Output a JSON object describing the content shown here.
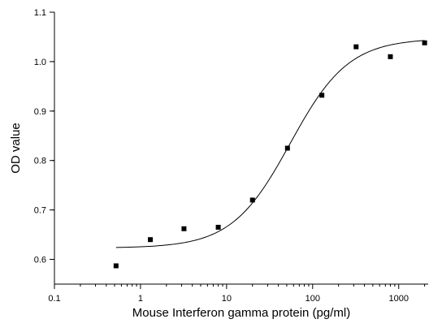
{
  "chart_data": {
    "type": "scatter",
    "title": "",
    "xlabel": "Mouse Interferon gamma protein (pg/ml)",
    "ylabel": "OD value",
    "x_scale": "log",
    "xlim": [
      0.1,
      2200
    ],
    "ylim": [
      0.55,
      1.1
    ],
    "x_ticks": [
      0.1,
      1,
      10,
      100,
      1000
    ],
    "x_tick_labels": [
      "0.1",
      "1",
      "10",
      "100",
      "1000"
    ],
    "y_ticks": [
      0.6,
      0.7,
      0.8,
      0.9,
      1.0,
      1.1
    ],
    "y_tick_labels": [
      "0.6",
      "0.7",
      "0.8",
      "0.9",
      "1.0",
      "1.1"
    ],
    "grid": false,
    "legend": "none",
    "marker": "square",
    "marker_color": "#000000",
    "line_color": "#000000",
    "series": [
      {
        "x": [
          0.52,
          1.3,
          3.2,
          8.0,
          20,
          51,
          128,
          320,
          800,
          2000
        ],
        "y": [
          0.587,
          0.64,
          0.662,
          0.665,
          0.72,
          0.825,
          0.932,
          1.03,
          1.01,
          1.038
        ]
      }
    ],
    "fit_curve": {
      "model": "4PL",
      "bottom": 0.623,
      "top": 1.047,
      "ec50": 55,
      "hill": 1.28,
      "x_range": [
        0.52,
        2000
      ]
    }
  }
}
